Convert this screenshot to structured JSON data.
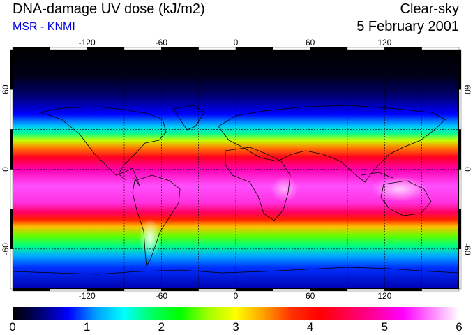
{
  "header": {
    "title": "DNA-damage UV dose (kJ/m2)",
    "subtitle": "MSR - KNMI",
    "condition": "Clear-sky",
    "date": "5 February 2001"
  },
  "map": {
    "lon_ticks": [
      "-120",
      "-60",
      "0",
      "60",
      "120"
    ],
    "lat_ticks": [
      "60",
      "0",
      "-60"
    ],
    "lon_range": [
      -180,
      180
    ],
    "lat_range": [
      -90,
      90
    ],
    "projection": "equirectangular",
    "grid": "dashed 30°"
  },
  "colorbar": {
    "min": 0,
    "max": 6,
    "labels": [
      "0",
      "1",
      "2",
      "3",
      "4",
      "5",
      "6"
    ],
    "colors": [
      "#000000",
      "#000070",
      "#0000ff",
      "#00a0ff",
      "#00ffff",
      "#00ff60",
      "#00ff00",
      "#a0ff00",
      "#ffff00",
      "#ffa000",
      "#ff3000",
      "#ff0000",
      "#ff0050",
      "#ff00a0",
      "#ff00ff",
      "#ff80ff",
      "#ffffff"
    ]
  }
}
